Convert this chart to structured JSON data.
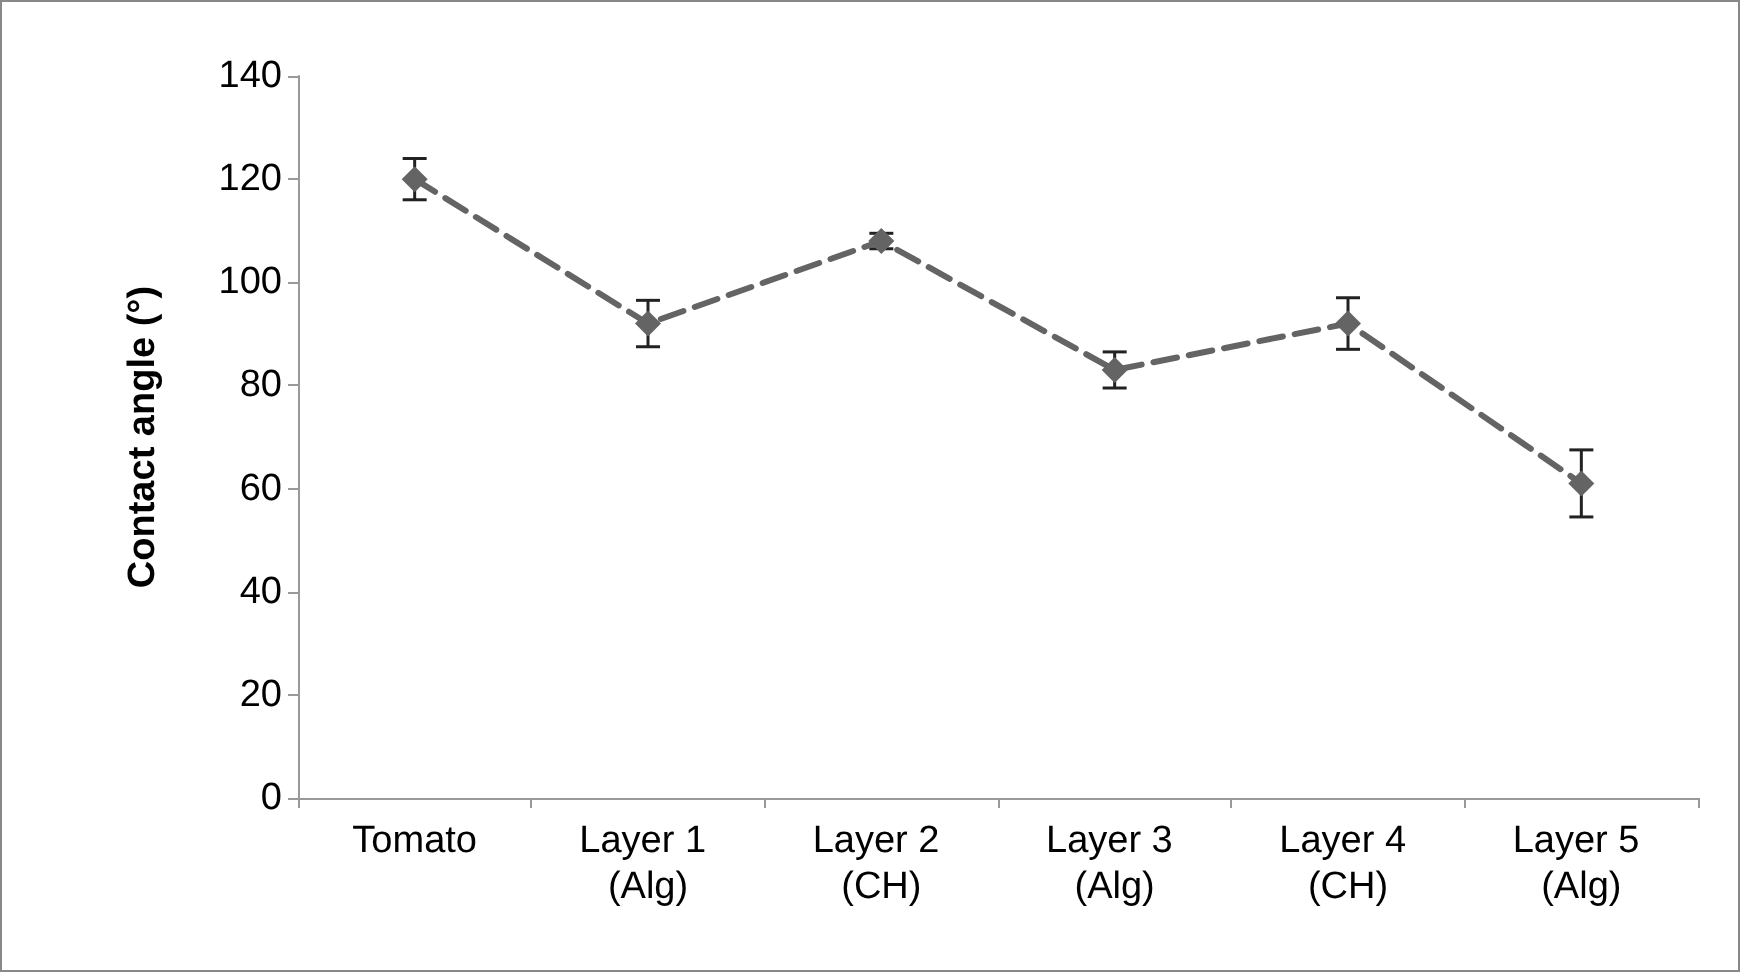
{
  "chart_data": {
    "type": "line",
    "ylabel": "Contact angle (°)",
    "categories": [
      "Tomato",
      "Layer 1 (Alg)",
      "Layer 2 (CH)",
      "Layer 3 (Alg)",
      "Layer 4 (CH)",
      "Layer 5 (Alg)"
    ],
    "series": [
      {
        "color": "#646464",
        "values": [
          120,
          92,
          108,
          83,
          92,
          61
        ],
        "errors": [
          4,
          4.5,
          1.5,
          3.5,
          5,
          6.5
        ]
      }
    ],
    "ylim": [
      0,
      140
    ],
    "yticks": [
      0,
      20,
      40,
      60,
      80,
      100,
      120,
      140
    ],
    "grid": false,
    "marker": "diamond",
    "line_style": "dashed"
  }
}
